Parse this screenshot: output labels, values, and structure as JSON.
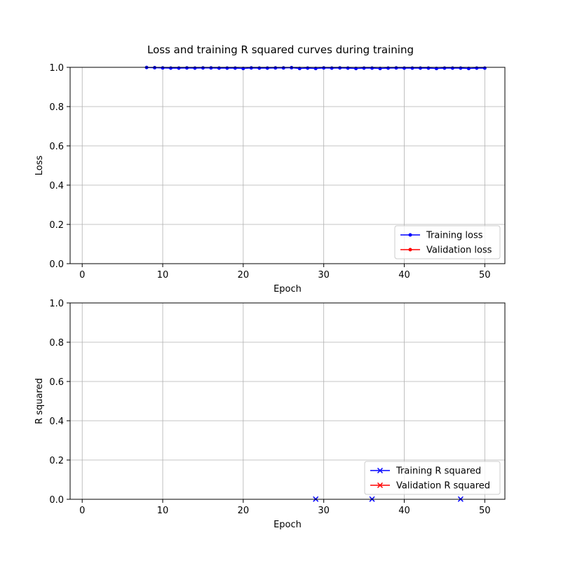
{
  "figure_title": "Loss and training R squared curves during training",
  "chart_data": [
    {
      "type": "line",
      "title": "",
      "xlabel": "Epoch",
      "ylabel": "Loss",
      "xlim": [
        -1.5,
        52.5
      ],
      "ylim": [
        0.0,
        1.0
      ],
      "xticks": [
        0,
        10,
        20,
        30,
        40,
        50
      ],
      "yticks": [
        0.0,
        0.2,
        0.4,
        0.6,
        0.8,
        1.0
      ],
      "xtick_labels": [
        "0",
        "10",
        "20",
        "30",
        "40",
        "50"
      ],
      "ytick_labels": [
        "0.0",
        "0.2",
        "0.4",
        "0.6",
        "0.8",
        "1.0"
      ],
      "grid": true,
      "legend_position": "lower-right",
      "series": [
        {
          "name": "Training loss",
          "color": "#0000ff",
          "marker": "dot",
          "x": [
            8,
            9,
            10,
            11,
            12,
            13,
            14,
            15,
            16,
            17,
            18,
            19,
            20,
            21,
            22,
            23,
            24,
            25,
            26,
            27,
            28,
            29,
            30,
            31,
            32,
            33,
            34,
            35,
            36,
            37,
            38,
            39,
            40,
            41,
            42,
            43,
            44,
            45,
            46,
            47,
            48,
            49,
            50
          ],
          "y": [
            0.999,
            0.998,
            0.997,
            0.996,
            0.996,
            0.997,
            0.996,
            0.997,
            0.997,
            0.996,
            0.996,
            0.996,
            0.994,
            0.997,
            0.996,
            0.996,
            0.997,
            0.997,
            0.998,
            0.994,
            0.996,
            0.994,
            0.997,
            0.996,
            0.997,
            0.996,
            0.994,
            0.996,
            0.996,
            0.994,
            0.996,
            0.997,
            0.996,
            0.996,
            0.996,
            0.996,
            0.994,
            0.996,
            0.996,
            0.996,
            0.994,
            0.996,
            0.996
          ]
        },
        {
          "name": "Validation loss",
          "color": "#ff0000",
          "marker": "dot",
          "x": [],
          "y": []
        }
      ]
    },
    {
      "type": "line",
      "title": "",
      "xlabel": "Epoch",
      "ylabel": "R squared",
      "xlim": [
        -1.5,
        52.5
      ],
      "ylim": [
        0.0,
        1.0
      ],
      "xticks": [
        0,
        10,
        20,
        30,
        40,
        50
      ],
      "yticks": [
        0.0,
        0.2,
        0.4,
        0.6,
        0.8,
        1.0
      ],
      "xtick_labels": [
        "0",
        "10",
        "20",
        "30",
        "40",
        "50"
      ],
      "ytick_labels": [
        "0.0",
        "0.2",
        "0.4",
        "0.6",
        "0.8",
        "1.0"
      ],
      "grid": true,
      "legend_position": "lower-right",
      "series": [
        {
          "name": "Training R squared",
          "color": "#0000ff",
          "marker": "x",
          "x": [
            29,
            36,
            47
          ],
          "y": [
            0.001,
            0.001,
            0.001
          ]
        },
        {
          "name": "Validation R squared",
          "color": "#ff0000",
          "marker": "x",
          "x": [],
          "y": []
        }
      ]
    }
  ]
}
